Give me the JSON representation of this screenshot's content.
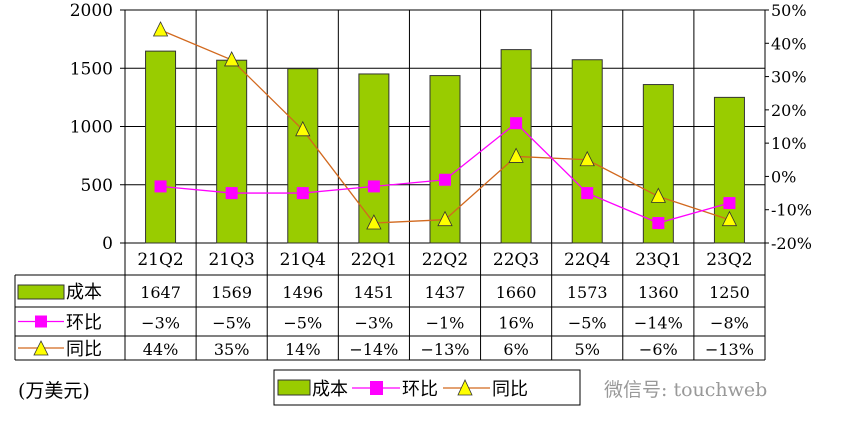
{
  "chart_data": {
    "type": "bar",
    "categories": [
      "21Q2",
      "21Q3",
      "21Q4",
      "22Q1",
      "22Q2",
      "22Q3",
      "22Q4",
      "23Q1",
      "23Q2"
    ],
    "unit_label": "(万美元)",
    "y_left": {
      "min": 0,
      "max": 2000,
      "ticks": [
        "0",
        "500",
        "1000",
        "1500",
        "2000"
      ]
    },
    "y_right": {
      "min": -20,
      "max": 50,
      "ticks": [
        "-20%",
        "-10%",
        "0%",
        "10%",
        "20%",
        "30%",
        "40%",
        "50%"
      ]
    },
    "grid": true,
    "legend_position": "bottom",
    "series": [
      {
        "name": "成本",
        "type": "bar",
        "axis": "left",
        "color": "#99cc00",
        "values": [
          1647,
          1569,
          1496,
          1451,
          1437,
          1660,
          1573,
          1360,
          1250
        ],
        "labels": [
          "1647",
          "1569",
          "1496",
          "1451",
          "1437",
          "1660",
          "1573",
          "1360",
          "1250"
        ]
      },
      {
        "name": "环比",
        "type": "line",
        "axis": "right",
        "color": "#ff00ff",
        "marker": "square",
        "values": [
          -3,
          -5,
          -5,
          -3,
          -1,
          16,
          -5,
          -14,
          -8
        ],
        "labels": [
          "−3%",
          "−5%",
          "−5%",
          "−3%",
          "−1%",
          "16%",
          "−5%",
          "−14%",
          "−8%"
        ]
      },
      {
        "name": "同比",
        "type": "line",
        "axis": "right",
        "color": "#d2691e",
        "marker": "triangle",
        "marker_color": "#ffff00",
        "values": [
          44,
          35,
          14,
          -14,
          -13,
          6,
          5,
          -6,
          -13
        ],
        "labels": [
          "44%",
          "35%",
          "14%",
          "−14%",
          "−13%",
          "6%",
          "5%",
          "−6%",
          "−13%"
        ]
      }
    ]
  },
  "watermark": "微信号: touchweb"
}
